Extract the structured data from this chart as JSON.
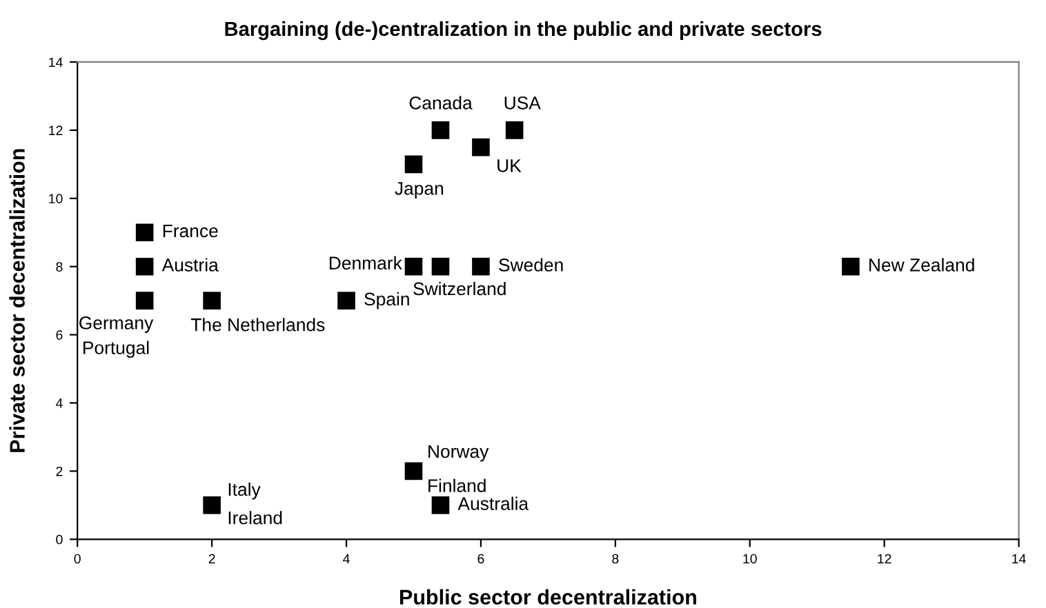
{
  "chart_data": {
    "type": "scatter",
    "title": "Bargaining (de-)centralization in the public and private sectors",
    "xlabel": "Public sector decentralization",
    "ylabel": "Private sector decentralization",
    "x": [
      5.4,
      6.5,
      6,
      5,
      1,
      1,
      1,
      2,
      4,
      5,
      5.4,
      6,
      11.5,
      5,
      5.4,
      2
    ],
    "series": [
      {
        "color": "#000000",
        "values": [
          12,
          12,
          11.5,
          11,
          9,
          8,
          7,
          7,
          7,
          8,
          8,
          8,
          8,
          2,
          1,
          1
        ]
      }
    ],
    "marker": "square",
    "xlim": [
      0,
      14
    ],
    "ylim": [
      0,
      14
    ],
    "xticks": [
      0,
      2,
      4,
      6,
      8,
      10,
      12,
      14
    ],
    "yticks": [
      0,
      2,
      4,
      6,
      8,
      10,
      12,
      14
    ],
    "grid": false,
    "annotations": [
      {
        "text": "Canada",
        "x": 5.4,
        "y": 12
      },
      {
        "text": "USA",
        "x": 6.5,
        "y": 12
      },
      {
        "text": "UK",
        "x": 6,
        "y": 11.5
      },
      {
        "text": "Japan",
        "x": 5,
        "y": 11
      },
      {
        "text": "France",
        "x": 1,
        "y": 9
      },
      {
        "text": "Austria",
        "x": 1,
        "y": 8
      },
      {
        "text": "Germany",
        "x": 1,
        "y": 7
      },
      {
        "text": "Portugal",
        "x": 1,
        "y": 7
      },
      {
        "text": "The Netherlands",
        "x": 2,
        "y": 7
      },
      {
        "text": "Spain",
        "x": 4,
        "y": 7
      },
      {
        "text": "Denmark",
        "x": 5,
        "y": 8
      },
      {
        "text": "Switzerland",
        "x": 5.4,
        "y": 8
      },
      {
        "text": "Sweden",
        "x": 6,
        "y": 8
      },
      {
        "text": "New Zealand",
        "x": 11.5,
        "y": 8
      },
      {
        "text": "Norway",
        "x": 5,
        "y": 2
      },
      {
        "text": "Finland",
        "x": 5,
        "y": 2
      },
      {
        "text": "Australia",
        "x": 5.4,
        "y": 1
      },
      {
        "text": "Italy",
        "x": 2,
        "y": 1
      },
      {
        "text": "Ireland",
        "x": 2,
        "y": 1
      }
    ]
  }
}
